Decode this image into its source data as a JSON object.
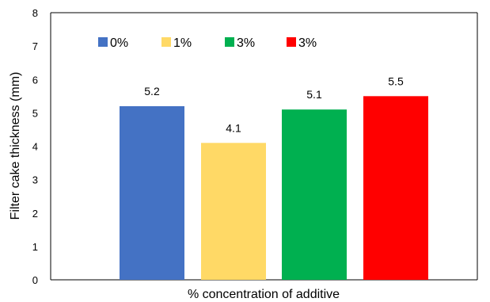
{
  "chart_data": {
    "type": "bar",
    "title": "",
    "xlabel": "% concentration of additive",
    "ylabel": "Filter cake thickness (mm)",
    "ylim": [
      0,
      8
    ],
    "y_ticks": [
      "0",
      "1",
      "2",
      "3",
      "4",
      "5",
      "6",
      "7",
      "8"
    ],
    "grid": false,
    "legend_position": "top-left",
    "series": [
      {
        "name": "0%",
        "value": 5.2,
        "label": "5.2",
        "color": "#4472C4"
      },
      {
        "name": "1%",
        "value": 4.1,
        "label": "4.1",
        "color": "#FFD966"
      },
      {
        "name": "3%",
        "value": 5.1,
        "label": "5.1",
        "color": "#00B050"
      },
      {
        "name": "3%",
        "value": 5.5,
        "label": "5.5",
        "color": "#FF0000"
      }
    ]
  }
}
